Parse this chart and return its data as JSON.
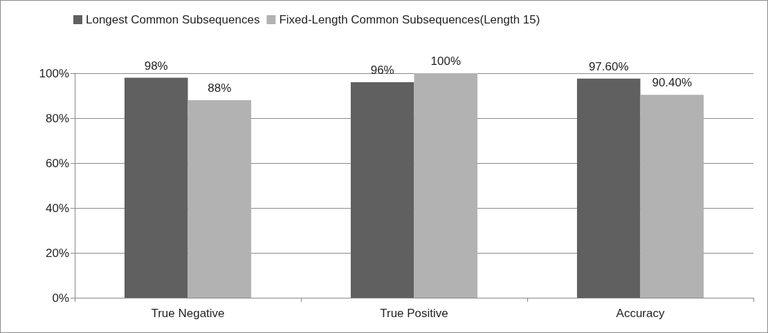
{
  "chart_data": {
    "type": "bar",
    "categories": [
      "True Negative",
      "True Positive",
      "Accuracy"
    ],
    "series": [
      {
        "name": "Longest Common Subsequences",
        "color": "#606060",
        "values": [
          98,
          96,
          97.6
        ],
        "value_labels": [
          "98%",
          "96%",
          "97.60%"
        ]
      },
      {
        "name": "Fixed-Length Common Subsequences(Length 15)",
        "color": "#b2b2b2",
        "values": [
          88,
          100,
          90.4
        ],
        "value_labels": [
          "88%",
          "100%",
          "90.40%"
        ]
      }
    ],
    "ylim": [
      0,
      100
    ],
    "yticks": [
      {
        "value": 0,
        "label": "0%"
      },
      {
        "value": 20,
        "label": "20%"
      },
      {
        "value": 40,
        "label": "40%"
      },
      {
        "value": 60,
        "label": "60%"
      },
      {
        "value": 80,
        "label": "80%"
      },
      {
        "value": 100,
        "label": "100%"
      }
    ],
    "grid": "y",
    "legend": "top left"
  }
}
